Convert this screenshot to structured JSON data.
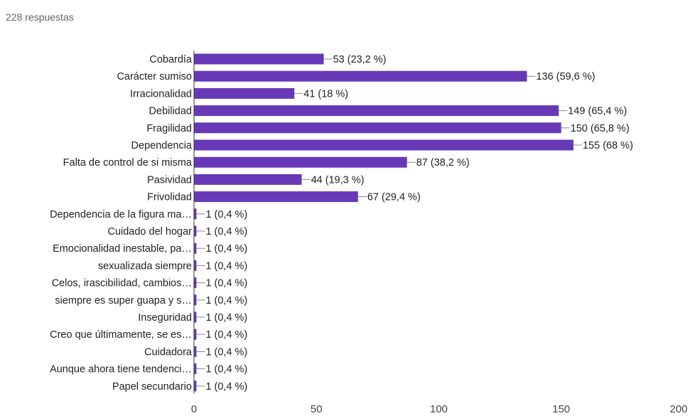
{
  "header": {
    "responses": "228 respuestas"
  },
  "colors": {
    "bar": "#6739b7",
    "axis": "#333333",
    "label": "#222222",
    "tick": "#444444"
  },
  "chart_data": {
    "type": "bar",
    "orientation": "horizontal",
    "categories": [
      "Cobardía",
      "Carácter sumiso",
      "Irracionalidad",
      "Debilidad",
      "Fragilidad",
      "Dependencia",
      "Falta de control de si misma",
      "Pasividad",
      "Frivolidad",
      "Dependencia de la figura ma…",
      "Cuidado del hogar",
      "Emocionalidad inestable, pa…",
      "sexualizada siempre",
      "Celos, irascibilidad, cambios…",
      "siempre es super guapa y s…",
      "Inseguridad",
      "Creo que últimamente, se es…",
      "Cuidadora",
      "Aunque ahora tiene tendenci…",
      "Papel secundario"
    ],
    "values": [
      53,
      136,
      41,
      149,
      150,
      155,
      87,
      44,
      67,
      1,
      1,
      1,
      1,
      1,
      1,
      1,
      1,
      1,
      1,
      1
    ],
    "data_labels": [
      "53 (23,2 %)",
      "136 (59,6 %)",
      "41 (18 %)",
      "149 (65,4 %)",
      "150 (65,8 %)",
      "155 (68 %)",
      "87 (38,2 %)",
      "44 (19,3 %)",
      "67 (29,4 %)",
      "1 (0,4 %)",
      "1 (0,4 %)",
      "1 (0,4 %)",
      "1 (0,4 %)",
      "1 (0,4 %)",
      "1 (0,4 %)",
      "1 (0,4 %)",
      "1 (0,4 %)",
      "1 (0,4 %)",
      "1 (0,4 %)",
      "1 (0,4 %)"
    ],
    "xlim": [
      0,
      200
    ],
    "xticks": [
      "0",
      "50",
      "100",
      "150",
      "200"
    ],
    "grid": false,
    "legend": "none"
  }
}
